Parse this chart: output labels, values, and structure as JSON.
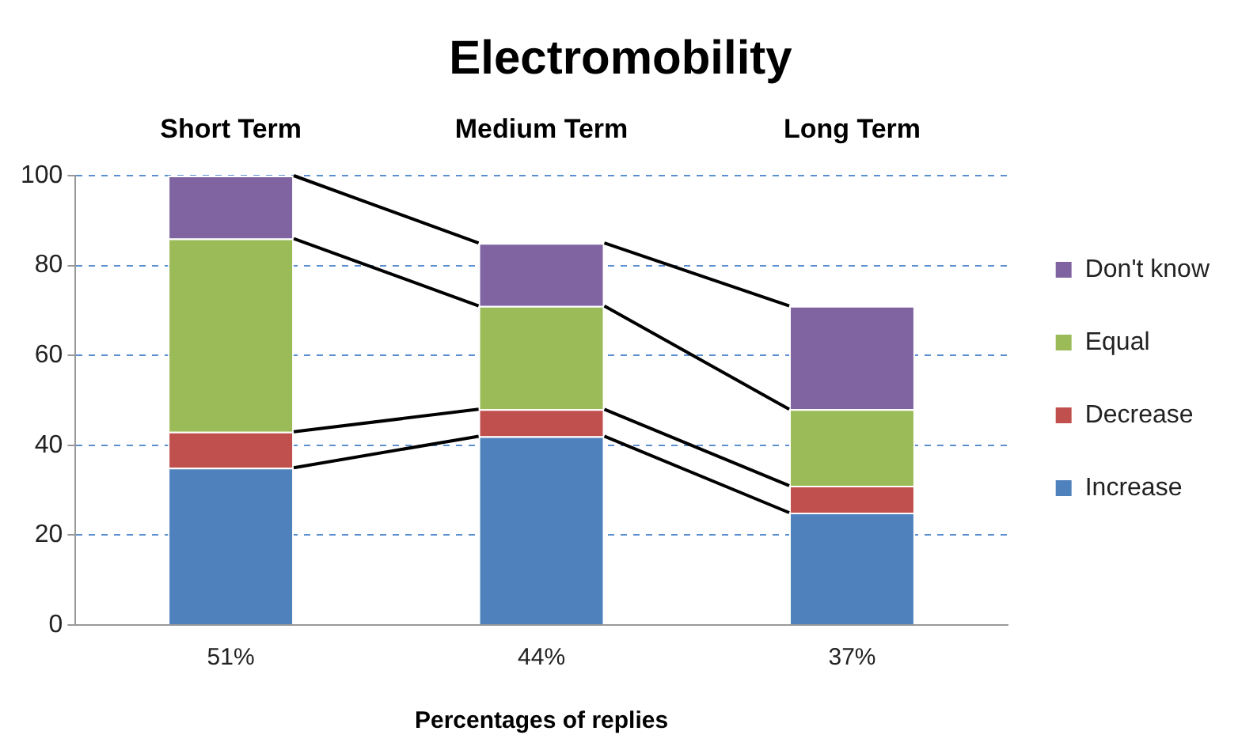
{
  "chart_data": {
    "type": "bar",
    "title": "Electromobility",
    "xlabel": "Percentages of replies",
    "categories": [
      "51%",
      "44%",
      "37%"
    ],
    "annotations": [
      "Short Term",
      "Medium Term",
      "Long Term"
    ],
    "stacked": true,
    "series": [
      {
        "name": "Increase",
        "color": "#4f81bd",
        "values": [
          35,
          42,
          25
        ]
      },
      {
        "name": "Decrease",
        "color": "#c0504d",
        "values": [
          8,
          6,
          6
        ]
      },
      {
        "name": "Equal",
        "color": "#9bbb59",
        "values": [
          43,
          23,
          17
        ]
      },
      {
        "name": "Don't know",
        "color": "#8064a2",
        "values": [
          14,
          14,
          23
        ]
      }
    ],
    "ylim": [
      0,
      100
    ],
    "yticks": [
      0,
      20,
      40,
      60,
      80,
      100
    ],
    "grid": "y",
    "legend": "right"
  }
}
